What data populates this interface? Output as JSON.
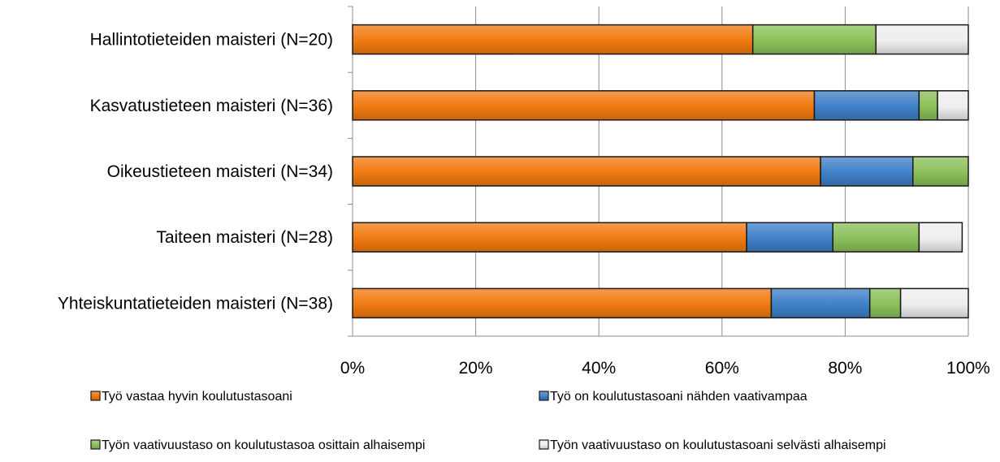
{
  "chart_data": {
    "type": "bar",
    "orientation": "horizontal",
    "stacked": true,
    "categories": [
      "Hallintotieteiden maisteri (N=20)",
      "Kasvatustieteen maisteri (N=36)",
      "Oikeustieteen maisteri (N=34)",
      "Taiteen maisteri (N=28)",
      "Yhteiskuntatieteiden maisteri (N=38)"
    ],
    "series": [
      {
        "name": "Työ vastaa hyvin koulutustasoani",
        "values": [
          65,
          75,
          76,
          64,
          68
        ]
      },
      {
        "name": "Työ on koulutustasoani nähden vaativampaa",
        "values": [
          0,
          17,
          15,
          14,
          16
        ]
      },
      {
        "name": "Työn vaativuustaso on koulutustasoa osittain alhaisempi",
        "values": [
          20,
          3,
          9,
          14,
          5
        ]
      },
      {
        "name": "Työn vaativuustaso on koulutustasoani selvästi alhaisempi",
        "values": [
          15,
          5,
          0,
          7,
          11
        ]
      }
    ],
    "x_ticks": [
      "0%",
      "20%",
      "40%",
      "60%",
      "80%",
      "100%"
    ],
    "xlim": [
      0,
      100
    ],
    "title": "",
    "xlabel": "",
    "ylabel": "",
    "grid": "vertical",
    "legend_position": "bottom",
    "colors": [
      "#f07a10",
      "#3f80c8",
      "#8cc05a",
      "#eeeeee"
    ]
  }
}
